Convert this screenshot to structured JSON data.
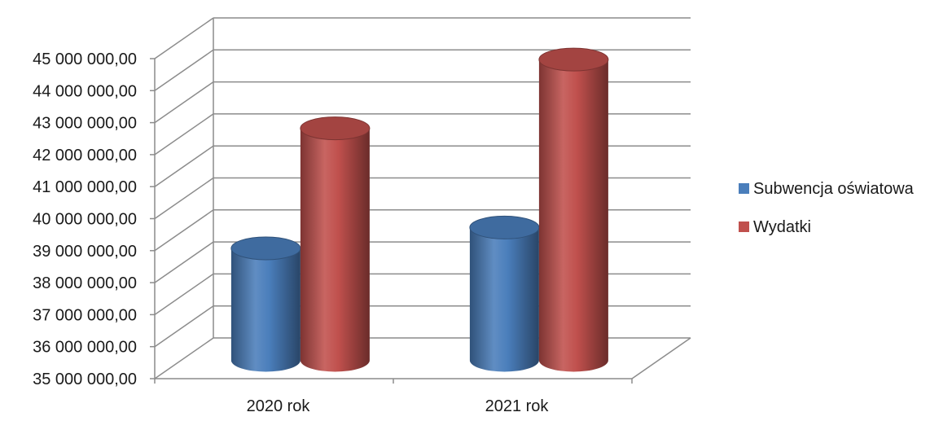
{
  "chart_data": {
    "type": "bar",
    "style": "3d-cylinder",
    "categories": [
      "2020 rok",
      "2021 rok"
    ],
    "series": [
      {
        "name": "Subwencja oświatowa",
        "color": "#4a7ebb",
        "values": [
          38500000,
          39150000
        ]
      },
      {
        "name": "Wydatki",
        "color": "#c0504d",
        "values": [
          42250000,
          44400000
        ]
      }
    ],
    "ylim": [
      35000000,
      45000000
    ],
    "y_ticks": [
      "35 000 000,00",
      "36 000 000,00",
      "37 000 000,00",
      "38 000 000,00",
      "39 000 000,00",
      "40 000 000,00",
      "41 000 000,00",
      "42 000 000,00",
      "43 000 000,00",
      "44 000 000,00",
      "45 000 000,00"
    ],
    "grid": true,
    "legend_position": "right"
  }
}
